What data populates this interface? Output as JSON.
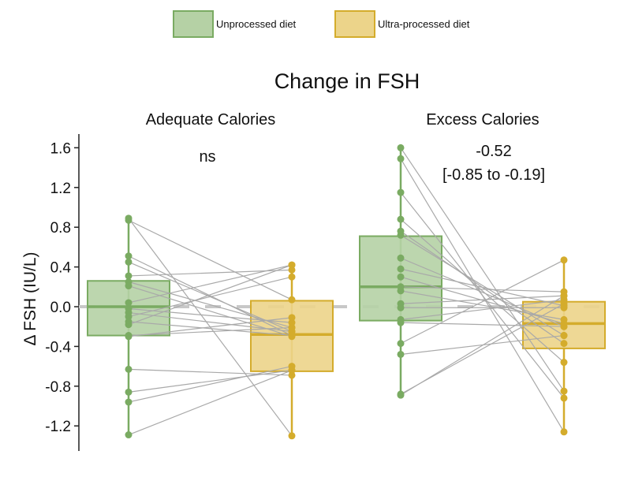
{
  "chart_data": {
    "type": "box",
    "title": "Change in FSH",
    "ylabel": "Δ FSH (IU/L)",
    "ylim": [
      -1.35,
      1.7
    ],
    "yticks": [
      "1.6",
      "1.2",
      "0.8",
      "0.4",
      "0.0",
      "-0.4",
      "-0.8",
      "-1.2"
    ],
    "ytick_values": [
      1.6,
      1.2,
      0.8,
      0.4,
      0.0,
      -0.4,
      -0.8,
      -1.2
    ],
    "reference_line": 0,
    "legend": {
      "placement": "top",
      "items": [
        {
          "label": "Unprocessed diet",
          "color": "#7aab62",
          "fill": "#b5d1a5"
        },
        {
          "label": "Ultra-processed diet",
          "color": "#d4ac2c",
          "fill": "#ecd48a"
        }
      ]
    },
    "panels": [
      {
        "label": "Adequate Calories",
        "annotation": [
          "ns"
        ],
        "unprocessed": {
          "q1": -0.29,
          "median": 0.0,
          "q3": 0.26,
          "min": -1.29,
          "max": 0.89,
          "points": [
            0.89,
            0.87,
            0.51,
            0.45,
            0.31,
            0.25,
            0.21,
            0.04,
            -0.02,
            -0.06,
            -0.1,
            -0.15,
            -0.18,
            -0.29,
            -0.3,
            -0.63,
            -0.86,
            -0.96,
            -1.29
          ]
        },
        "ultra": {
          "q1": -0.65,
          "median": -0.28,
          "q3": 0.06,
          "min": -1.3,
          "max": 0.42,
          "points": [
            -1.3,
            0.07,
            -0.29,
            -0.25,
            0.37,
            -0.21,
            -0.3,
            0.42,
            -0.16,
            -0.25,
            0.3,
            -0.29,
            0.42,
            -0.21,
            -0.11,
            -0.69,
            -0.64,
            -0.6,
            -0.64
          ]
        }
      },
      {
        "label": "Excess Calories",
        "annotation": [
          "-0.52",
          "[-0.85 to -0.19]"
        ],
        "unprocessed": {
          "q1": -0.14,
          "median": 0.2,
          "q3": 0.71,
          "min": -0.89,
          "max": 1.6,
          "points": [
            1.6,
            1.49,
            1.15,
            0.88,
            0.76,
            0.72,
            0.49,
            0.38,
            0.3,
            0.2,
            0.16,
            0.03,
            -0.01,
            -0.13,
            -0.16,
            -0.37,
            -0.48,
            -0.89,
            -0.88
          ]
        },
        "ultra": {
          "q1": -0.42,
          "median": -0.17,
          "q3": 0.05,
          "min": -1.26,
          "max": 0.47,
          "points": [
            -0.85,
            -1.26,
            -0.92,
            -0.56,
            -0.37,
            -0.29,
            -0.2,
            0.01,
            -0.17,
            0.15,
            -0.13,
            0.11,
            -0.01,
            0.07,
            -0.2,
            0.47,
            -0.29,
            0.11,
            0.03
          ]
        }
      }
    ]
  }
}
